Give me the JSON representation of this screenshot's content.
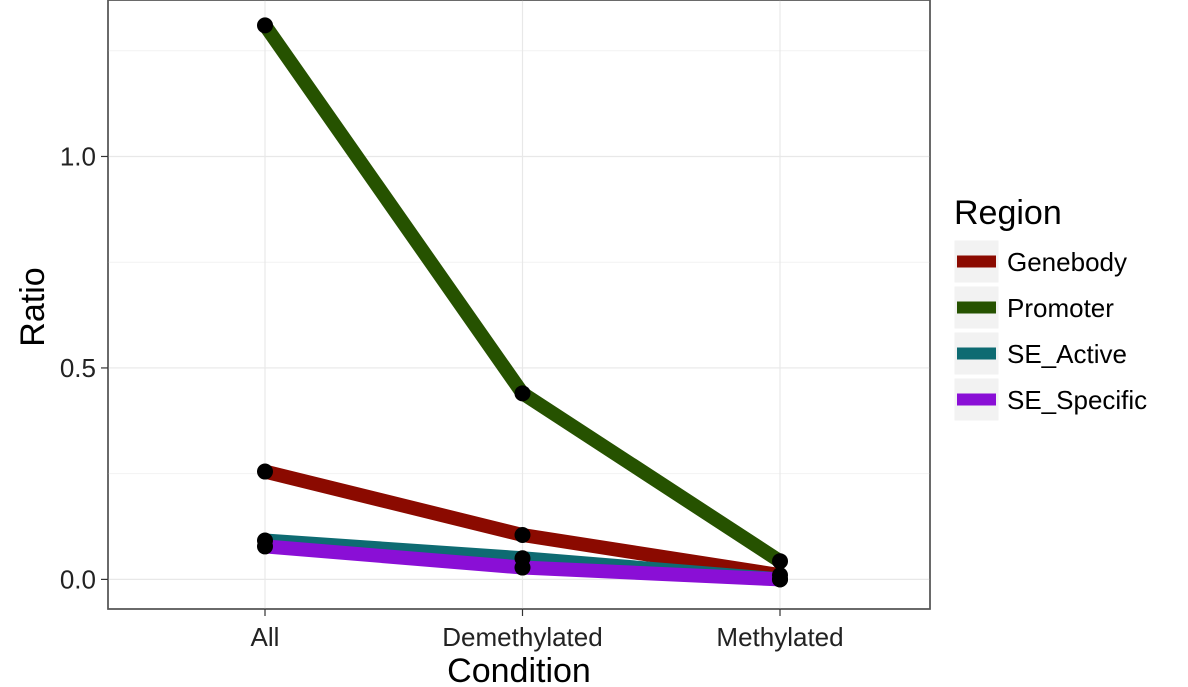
{
  "chart_data": {
    "type": "line",
    "title": "",
    "xlabel": "Condition",
    "ylabel": "Ratio",
    "categories": [
      "All",
      "Demethylated",
      "Methylated"
    ],
    "yticks": [
      0.0,
      0.5,
      1.0
    ],
    "ytick_labels": [
      "0.0",
      "0.5",
      "1.0"
    ],
    "ylim": [
      -0.07,
      1.37
    ],
    "grid": true,
    "legend_title": "Region",
    "legend_position": "right",
    "series": [
      {
        "name": "Genebody",
        "color": "#8b0a00",
        "values": [
          0.255,
          0.105,
          0.01
        ]
      },
      {
        "name": "Promoter",
        "color": "#265200",
        "values": [
          1.31,
          0.44,
          0.043
        ]
      },
      {
        "name": "SE_Active",
        "color": "#0e6b72",
        "values": [
          0.092,
          0.05,
          0.0
        ]
      },
      {
        "name": "SE_Specific",
        "color": "#8a0fd6",
        "values": [
          0.078,
          0.028,
          0.0
        ]
      }
    ],
    "point_color": "#000000"
  }
}
